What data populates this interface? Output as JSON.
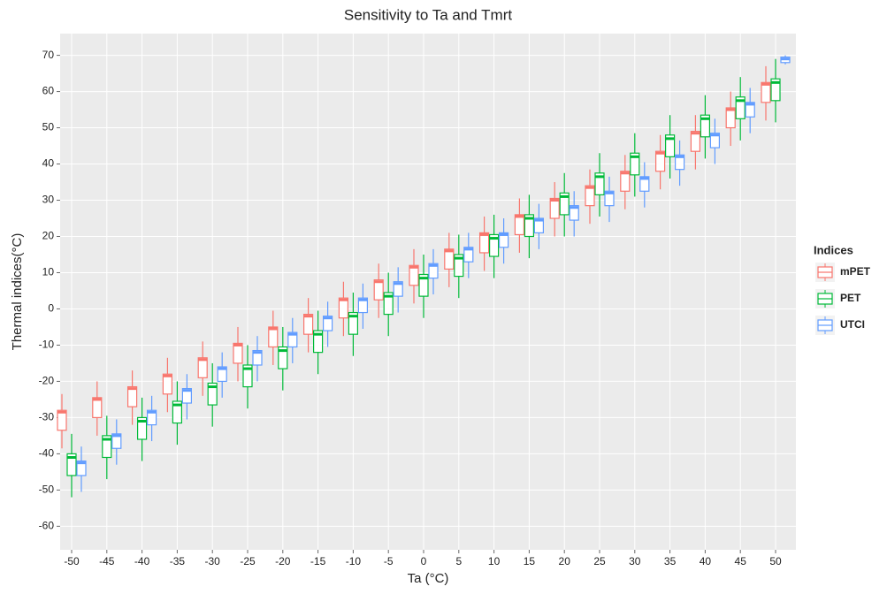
{
  "chart_data": {
    "type": "boxplot",
    "title": "Sensitivity to Ta and Tmrt",
    "x_label": "Ta (°C)",
    "y_label": "Thermal indices(°C)",
    "legend_title": "Indices",
    "legend_position": "right",
    "grid": true,
    "categories": [
      "-50",
      "-45",
      "-40",
      "-35",
      "-30",
      "-25",
      "-20",
      "-15",
      "-10",
      "-5",
      "0",
      "5",
      "10",
      "15",
      "20",
      "25",
      "30",
      "35",
      "40",
      "45",
      "50"
    ],
    "ylim": [
      -66.5,
      76
    ],
    "yticks": [
      -60,
      -50,
      -40,
      -30,
      -20,
      -10,
      0,
      10,
      20,
      30,
      40,
      50,
      60,
      70
    ],
    "series": [
      {
        "name": "mPET",
        "color": "#f8766d",
        "low": [
          -38.5,
          -35,
          -32,
          -28.5,
          -24,
          -20,
          -15.5,
          -12,
          -7.5,
          -2.5,
          1.5,
          6,
          10.5,
          15.5,
          20,
          23.5,
          27.5,
          33,
          38.5,
          45,
          52
        ],
        "q1": [
          -33.5,
          -30,
          -27,
          -23.5,
          -19,
          -15,
          -10.5,
          -7,
          -2.5,
          2.5,
          6.5,
          11,
          15.5,
          20.5,
          25,
          28.5,
          32.5,
          38,
          43.5,
          50,
          57
        ],
        "median": [
          -28.5,
          -25,
          -22,
          -18.5,
          -14,
          -10,
          -5.5,
          -2,
          2.5,
          7.5,
          11.5,
          16,
          20.5,
          25.5,
          30,
          33.5,
          37.5,
          43,
          48.5,
          55,
          62
        ],
        "q3": [
          -28,
          -24.5,
          -21.5,
          -18,
          -13.5,
          -9.5,
          -5,
          -1.5,
          3,
          8,
          12,
          16.5,
          21,
          26,
          30.5,
          34,
          38,
          43.5,
          49,
          55.5,
          62.5
        ],
        "high": [
          -23.5,
          -20,
          -17,
          -13.5,
          -9,
          -5,
          -0.5,
          3,
          7.5,
          12.5,
          16.5,
          21,
          25.5,
          30.5,
          35,
          38.5,
          42.5,
          48,
          53.5,
          60,
          67
        ]
      },
      {
        "name": "PET",
        "color": "#00ba38",
        "low": [
          -52,
          -47,
          -42,
          -37.5,
          -32.5,
          -27.5,
          -22.5,
          -18,
          -13,
          -7.5,
          -2.5,
          3,
          8.5,
          14,
          20,
          25.5,
          31,
          36,
          41.5,
          46.5,
          51.5
        ],
        "q1": [
          -46,
          -41,
          -36,
          -31.5,
          -26.5,
          -21.5,
          -16.5,
          -12,
          -7,
          -1.5,
          3.5,
          9,
          14.5,
          20,
          26,
          31.5,
          37,
          42,
          47.5,
          52.5,
          57.5
        ],
        "median": [
          -41,
          -36,
          -31,
          -26.5,
          -21.5,
          -16.5,
          -11.5,
          -7,
          -2,
          3.5,
          8.5,
          14,
          19.5,
          25,
          31,
          36.5,
          42,
          47,
          52.5,
          57.5,
          62.5
        ],
        "q3": [
          -40,
          -35,
          -30,
          -25.5,
          -20.5,
          -15.5,
          -10.5,
          -6,
          -1,
          4.5,
          9.5,
          15,
          20.5,
          26,
          32,
          37.5,
          43,
          48,
          53.5,
          58.5,
          63.5
        ],
        "high": [
          -34.5,
          -29.5,
          -24.5,
          -20,
          -15,
          -10,
          -5,
          -0.5,
          4.5,
          10,
          15,
          20.5,
          26,
          31.5,
          37.5,
          43,
          48.5,
          53.5,
          59,
          64,
          69
        ]
      },
      {
        "name": "UTCI",
        "color": "#619cff",
        "low": [
          -50.5,
          -43,
          -36.5,
          -30.5,
          -24.5,
          -20,
          -15,
          -10.5,
          -5.5,
          -1,
          4,
          8.5,
          12.5,
          16.5,
          20,
          24,
          28,
          34,
          40,
          48.5,
          67.5
        ],
        "q1": [
          -46,
          -38.5,
          -32,
          -26,
          -20,
          -15.5,
          -10.5,
          -6,
          -1,
          3.5,
          8.5,
          13,
          17,
          21,
          24.5,
          28.5,
          32.5,
          38.5,
          44.5,
          53,
          68
        ],
        "median": [
          -42.5,
          -35,
          -28.5,
          -22.5,
          -16.5,
          -12,
          -7,
          -2.5,
          2.5,
          7,
          12,
          16.5,
          20.5,
          24.5,
          28,
          32,
          36,
          42,
          48,
          56.5,
          69
        ],
        "q3": [
          -42,
          -34.5,
          -28,
          -22,
          -16,
          -11.5,
          -6.5,
          -2,
          3,
          7.5,
          12.5,
          17,
          21,
          25,
          28.5,
          32.5,
          36.5,
          42.5,
          48.5,
          57,
          69.5
        ],
        "high": [
          -38,
          -30.5,
          -24,
          -18,
          -12,
          -7.5,
          -2.5,
          2,
          7,
          11.5,
          16.5,
          21,
          25,
          29,
          32.5,
          36.5,
          40.5,
          46.5,
          52.5,
          61,
          70
        ]
      }
    ]
  }
}
